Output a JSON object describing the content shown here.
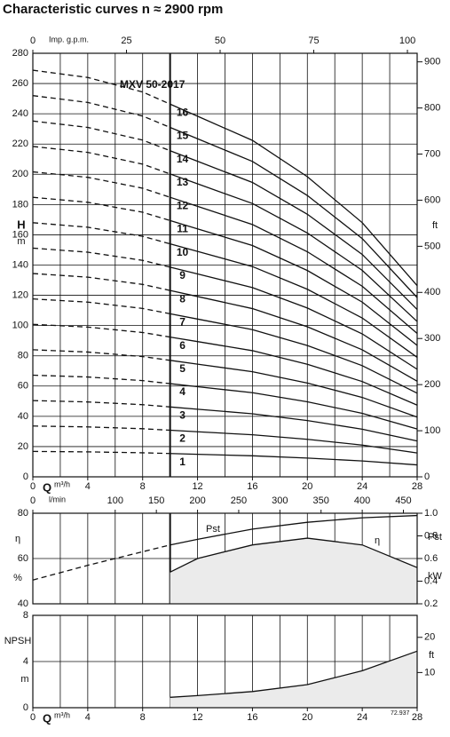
{
  "chart_data": [
    {
      "type": "line",
      "title": "Characteristic curves n ≈ 2900 rpm",
      "annotation": "MXV 50-2017",
      "x": [
        0,
        4,
        8,
        10,
        12,
        16,
        20,
        24,
        28
      ],
      "xlim": [
        0,
        28
      ],
      "xticks": [
        0,
        4,
        8,
        12,
        16,
        20,
        24,
        28
      ],
      "xgrid": [
        0,
        2,
        4,
        6,
        8,
        10,
        12,
        14,
        16,
        18,
        20,
        22,
        24,
        26,
        28
      ],
      "xlabel": "Q",
      "xunit": "m³/h",
      "x2label": "Imp. g.p.m.",
      "x2lim": [
        0,
        102.6
      ],
      "x2ticks": [
        0,
        25,
        50,
        75,
        100
      ],
      "ylabel": "H",
      "yunit": "m",
      "ylim": [
        0,
        280
      ],
      "yticks": [
        0,
        20,
        40,
        60,
        80,
        100,
        120,
        140,
        160,
        180,
        200,
        220,
        240,
        260,
        280
      ],
      "y2label": "ft",
      "y2lim": [
        0,
        918.6
      ],
      "y2ticks": [
        0,
        100,
        200,
        300,
        400,
        500,
        600,
        700,
        800,
        900
      ],
      "dashed_below": 10,
      "grid": true,
      "series": [
        {
          "name": "1",
          "color": "#111111",
          "values": [
            16.8,
            16.5,
            15.9,
            15.4,
            14.9,
            13.9,
            12.4,
            10.5,
            7.9
          ]
        },
        {
          "name": "2",
          "color": "#111111",
          "values": [
            33.6,
            33,
            31.8,
            30.8,
            29.8,
            27.8,
            24.8,
            21,
            15.8
          ]
        },
        {
          "name": "3",
          "color": "#111111",
          "values": [
            50.4,
            49.5,
            47.7,
            46.2,
            44.7,
            41.7,
            37.2,
            31.5,
            23.7
          ]
        },
        {
          "name": "4",
          "color": "#111111",
          "values": [
            67.2,
            66,
            63.6,
            61.6,
            59.6,
            55.6,
            49.6,
            42,
            31.6
          ]
        },
        {
          "name": "5",
          "color": "#111111",
          "values": [
            84,
            82.5,
            79.5,
            77,
            74.5,
            69.5,
            62,
            52.5,
            39.5
          ]
        },
        {
          "name": "6",
          "color": "#111111",
          "values": [
            100.8,
            99,
            95.4,
            92.4,
            89.4,
            83.4,
            74.4,
            63,
            47.4
          ]
        },
        {
          "name": "7",
          "color": "#111111",
          "values": [
            117.6,
            115.5,
            111.3,
            107.8,
            104.3,
            97.3,
            86.8,
            73.5,
            55.3
          ]
        },
        {
          "name": "8",
          "color": "#111111",
          "values": [
            134.4,
            132,
            127.2,
            123.2,
            119.2,
            111.2,
            99.2,
            84,
            63.2
          ]
        },
        {
          "name": "9",
          "color": "#111111",
          "values": [
            151.2,
            148.5,
            143.1,
            138.6,
            134.1,
            125.1,
            111.6,
            94.5,
            71.1
          ]
        },
        {
          "name": "10",
          "color": "#111111",
          "values": [
            168,
            165,
            159,
            154,
            149,
            139,
            124,
            105,
            79
          ]
        },
        {
          "name": "11",
          "color": "#111111",
          "values": [
            184.8,
            181.5,
            174.9,
            169.4,
            163.9,
            152.9,
            136.4,
            115.5,
            86.9
          ]
        },
        {
          "name": "12",
          "color": "#111111",
          "values": [
            201.6,
            198,
            190.8,
            184.8,
            178.8,
            166.8,
            148.8,
            126,
            94.8
          ]
        },
        {
          "name": "13",
          "color": "#111111",
          "values": [
            218.4,
            214.5,
            206.7,
            200.2,
            193.7,
            180.7,
            161.2,
            136.5,
            102.7
          ]
        },
        {
          "name": "14",
          "color": "#111111",
          "values": [
            235.2,
            231,
            222.6,
            215.6,
            208.6,
            194.6,
            173.6,
            147,
            110.6
          ]
        },
        {
          "name": "15",
          "color": "#111111",
          "values": [
            252,
            247.5,
            238.5,
            231,
            223.5,
            208.5,
            186,
            157.5,
            118.5
          ]
        },
        {
          "name": "16",
          "color": "#111111",
          "values": [
            268.8,
            264,
            254.4,
            246.4,
            238.4,
            222.4,
            198.4,
            168,
            126.4
          ]
        }
      ]
    },
    {
      "type": "line",
      "xlim": [
        0,
        28
      ],
      "xgrid": [
        0,
        2,
        4,
        6,
        8,
        10,
        12,
        14,
        16,
        18,
        20,
        22,
        24,
        26,
        28
      ],
      "x2label": "l/min",
      "x2lim": [
        0,
        466.7
      ],
      "x2ticks": [
        0,
        100,
        150,
        200,
        250,
        300,
        350,
        400,
        450
      ],
      "ylabel": "η",
      "yunit": "%",
      "ylim": [
        40,
        80
      ],
      "yticks": [
        40,
        60,
        80
      ],
      "y2label": "Pst",
      "y2unit": "kW",
      "y2lim": [
        0.2,
        1
      ],
      "y2ticks": [
        0.2,
        0.4,
        0.6,
        0.8,
        {
          "value": 1,
          "label": "1.0"
        }
      ],
      "dashed_below": 10,
      "grid": true,
      "series": [
        {
          "name": "Pst",
          "color": "#111111",
          "axis": "y2",
          "x": [
            0,
            4,
            8,
            10,
            12,
            16,
            20,
            24,
            28
          ],
          "values": [
            0.41,
            0.54,
            0.66,
            0.72,
            0.77,
            0.86,
            0.92,
            0.96,
            0.98
          ]
        },
        {
          "name": "η",
          "color": "#111111",
          "fill": "#ebebeb",
          "x": [
            10,
            12,
            16,
            20,
            24,
            28
          ],
          "values": [
            54,
            60,
            66,
            69,
            66,
            56
          ]
        }
      ]
    },
    {
      "type": "line",
      "xlim": [
        0,
        28
      ],
      "xticks": [
        0,
        4,
        8,
        12,
        16,
        20,
        24,
        28
      ],
      "xgrid": [
        0,
        2,
        4,
        6,
        8,
        10,
        12,
        14,
        16,
        18,
        20,
        22,
        24,
        26,
        28
      ],
      "xlabel": "Q",
      "xunit": "m³/h",
      "ylabel": "NPSH",
      "yunit": "m",
      "ylim": [
        0,
        8
      ],
      "yticks": [
        0,
        4,
        8
      ],
      "y2label": "ft",
      "y2lim": [
        0,
        26.25
      ],
      "y2ticks": [
        10,
        20
      ],
      "code": "72.937",
      "grid": true,
      "series": [
        {
          "color": "#111111",
          "fill": "#ebebeb",
          "x": [
            10,
            12,
            16,
            20,
            24,
            28
          ],
          "values": [
            0.9,
            1.05,
            1.4,
            2,
            3.2,
            4.9
          ]
        }
      ]
    }
  ]
}
